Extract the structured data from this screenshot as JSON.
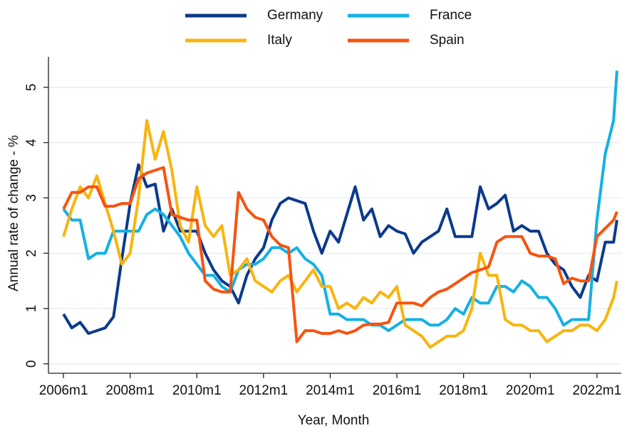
{
  "chart_data": {
    "type": "line",
    "x_label": "Year, Month",
    "y_label": "Annual rate of change - %",
    "xlim": [
      2005.55,
      2022.73
    ],
    "ylim": [
      -0.17,
      5.55
    ],
    "xticks": [
      {
        "value": 2006,
        "label": "2006m1"
      },
      {
        "value": 2008,
        "label": "2008m1"
      },
      {
        "value": 2010,
        "label": "2010m1"
      },
      {
        "value": 2012,
        "label": "2012m1"
      },
      {
        "value": 2014,
        "label": "2014m1"
      },
      {
        "value": 2016,
        "label": "2016m1"
      },
      {
        "value": 2018,
        "label": "2018m1"
      },
      {
        "value": 2020,
        "label": "2020m1"
      },
      {
        "value": 2022,
        "label": "2022m1"
      }
    ],
    "yticks": [
      0,
      1,
      2,
      3,
      4,
      5
    ],
    "grid": true,
    "legend": "top",
    "x": [
      2006,
      2006.25,
      2006.5,
      2006.75,
      2007,
      2007.25,
      2007.5,
      2007.75,
      2008,
      2008.25,
      2008.5,
      2008.75,
      2009,
      2009.25,
      2009.5,
      2009.75,
      2010,
      2010.25,
      2010.5,
      2010.75,
      2011,
      2011.25,
      2011.5,
      2011.75,
      2012,
      2012.25,
      2012.5,
      2012.75,
      2013,
      2013.25,
      2013.5,
      2013.75,
      2014,
      2014.25,
      2014.5,
      2014.75,
      2015,
      2015.25,
      2015.5,
      2015.75,
      2016,
      2016.25,
      2016.5,
      2016.75,
      2017,
      2017.25,
      2017.5,
      2017.75,
      2018,
      2018.25,
      2018.5,
      2018.75,
      2019,
      2019.25,
      2019.5,
      2019.75,
      2020,
      2020.25,
      2020.5,
      2020.75,
      2021,
      2021.25,
      2021.5,
      2021.75,
      2022,
      2022.25,
      2022.5,
      2022.6
    ],
    "series": [
      {
        "name": "Germany",
        "color": "#0b3a8c",
        "values": [
          0.9,
          0.65,
          0.75,
          0.55,
          0.6,
          0.65,
          0.85,
          1.9,
          2.9,
          3.6,
          3.2,
          3.25,
          2.4,
          2.8,
          2.4,
          2.4,
          2.4,
          2.0,
          1.7,
          1.5,
          1.4,
          1.1,
          1.6,
          1.9,
          2.1,
          2.6,
          2.9,
          3.0,
          2.95,
          2.9,
          2.4,
          2.0,
          2.4,
          2.2,
          2.7,
          3.2,
          2.6,
          2.8,
          2.3,
          2.5,
          2.4,
          2.35,
          2.0,
          2.2,
          2.3,
          2.4,
          2.8,
          2.3,
          2.3,
          2.3,
          3.2,
          2.8,
          2.9,
          3.05,
          2.4,
          2.5,
          2.4,
          2.4,
          2.0,
          1.8,
          1.7,
          1.4,
          1.2,
          1.6,
          1.5,
          2.2,
          2.2,
          2.6
        ]
      },
      {
        "name": "France",
        "color": "#14b0e6",
        "values": [
          2.8,
          2.6,
          2.6,
          1.9,
          2.0,
          2.0,
          2.4,
          2.4,
          2.4,
          2.4,
          2.7,
          2.8,
          2.7,
          2.5,
          2.3,
          2.0,
          1.8,
          1.6,
          1.6,
          1.4,
          1.3,
          1.7,
          1.8,
          1.8,
          1.9,
          2.1,
          2.1,
          2.0,
          2.1,
          1.9,
          1.8,
          1.6,
          0.9,
          0.9,
          0.8,
          0.8,
          0.8,
          0.7,
          0.7,
          0.6,
          0.7,
          0.8,
          0.8,
          0.8,
          0.7,
          0.7,
          0.8,
          1.0,
          0.9,
          1.2,
          1.1,
          1.1,
          1.4,
          1.4,
          1.3,
          1.5,
          1.4,
          1.2,
          1.2,
          1.0,
          0.7,
          0.8,
          0.8,
          0.8,
          2.6,
          3.8,
          4.4,
          5.3
        ]
      },
      {
        "name": "Italy",
        "color": "#f9b40e",
        "values": [
          2.3,
          2.8,
          3.2,
          3.0,
          3.4,
          2.9,
          2.4,
          1.8,
          2.0,
          3.0,
          4.4,
          3.7,
          4.2,
          3.5,
          2.5,
          2.2,
          3.2,
          2.5,
          2.3,
          2.5,
          1.6,
          1.7,
          1.9,
          1.5,
          1.4,
          1.3,
          1.5,
          1.6,
          1.3,
          1.5,
          1.7,
          1.4,
          1.4,
          1.0,
          1.1,
          1.0,
          1.2,
          1.1,
          1.3,
          1.2,
          1.4,
          0.7,
          0.6,
          0.5,
          0.3,
          0.4,
          0.5,
          0.5,
          0.6,
          1.0,
          2.0,
          1.6,
          1.6,
          0.8,
          0.7,
          0.7,
          0.6,
          0.6,
          0.4,
          0.5,
          0.6,
          0.6,
          0.7,
          0.7,
          0.6,
          0.8,
          1.2,
          1.5
        ]
      },
      {
        "name": "Spain",
        "color": "#f7530f",
        "values": [
          2.8,
          3.1,
          3.1,
          3.2,
          3.2,
          2.85,
          2.85,
          2.9,
          2.9,
          3.35,
          3.45,
          3.5,
          3.55,
          2.7,
          2.65,
          2.6,
          2.6,
          1.5,
          1.35,
          1.3,
          1.3,
          3.1,
          2.8,
          2.65,
          2.6,
          2.3,
          2.15,
          2.1,
          0.4,
          0.6,
          0.6,
          0.55,
          0.55,
          0.6,
          0.55,
          0.6,
          0.7,
          0.72,
          0.72,
          0.75,
          1.1,
          1.1,
          1.1,
          1.05,
          1.2,
          1.3,
          1.35,
          1.45,
          1.55,
          1.65,
          1.7,
          1.75,
          2.2,
          2.3,
          2.3,
          2.3,
          2.0,
          1.95,
          1.95,
          1.9,
          1.45,
          1.55,
          1.5,
          1.5,
          2.3,
          2.45,
          2.6,
          2.75
        ]
      }
    ]
  }
}
